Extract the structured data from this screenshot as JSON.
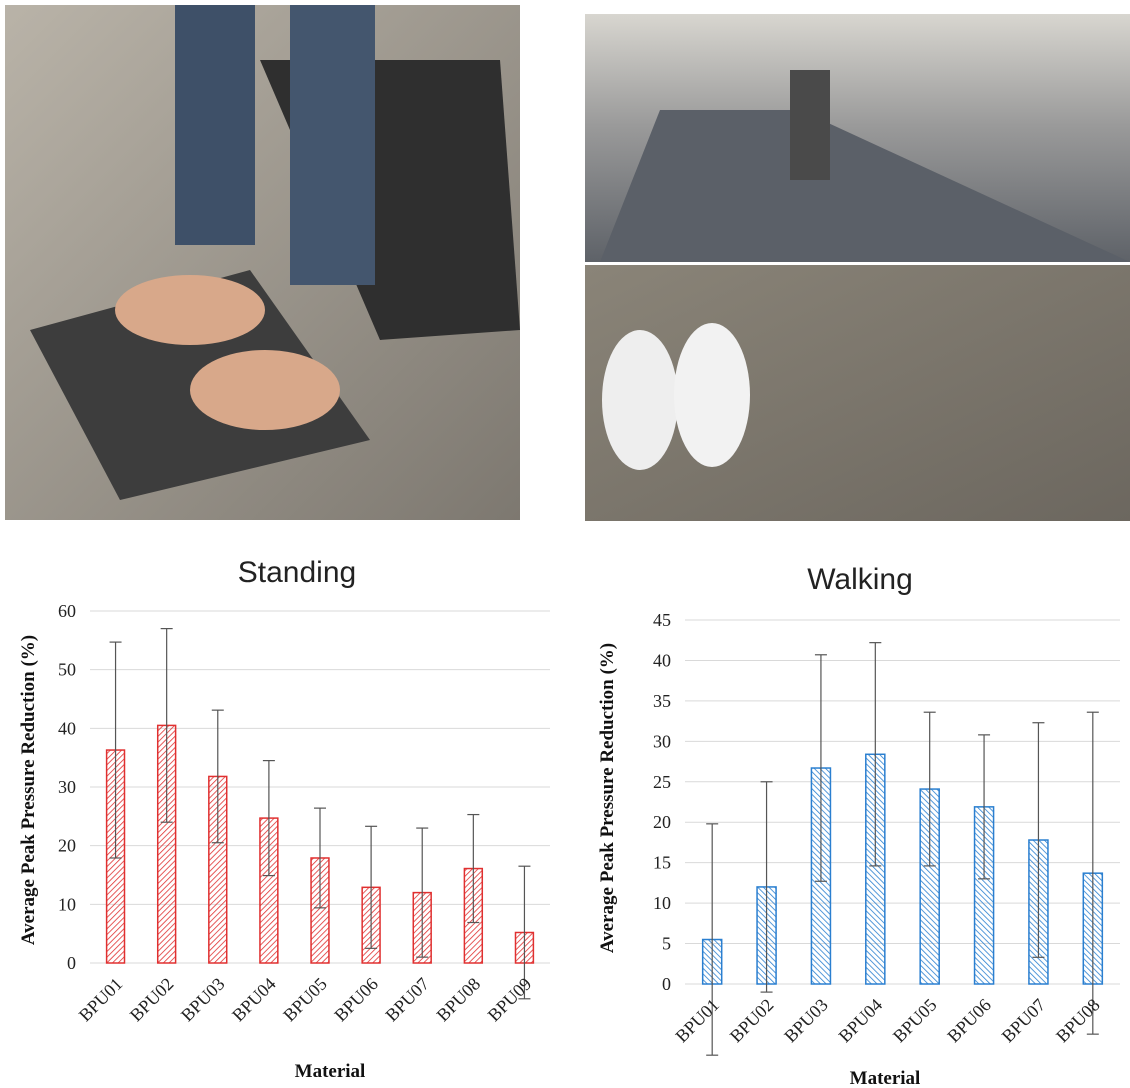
{
  "chart_data": [
    {
      "type": "bar",
      "title": "Standing",
      "x_label": "Material",
      "y_label": "Average Peak Pressure Reduction (%)",
      "categories": [
        "BPU01",
        "BPU02",
        "BPU03",
        "BPU04",
        "BPU05",
        "BPU06",
        "BPU07",
        "BPU08",
        "BPU09"
      ],
      "values": [
        36.3,
        40.5,
        31.8,
        24.7,
        17.9,
        12.9,
        12.0,
        16.1,
        5.2
      ],
      "errors": [
        18.4,
        16.5,
        11.3,
        9.8,
        8.5,
        10.4,
        11.0,
        9.2,
        11.3
      ],
      "color": "#e03030",
      "ylim": [
        0,
        60
      ],
      "yticks": [
        0,
        10,
        20,
        30,
        40,
        50,
        60
      ],
      "grid": true
    },
    {
      "type": "bar",
      "title": "Walking",
      "x_label": "Material",
      "y_label": "Average Peak Pressure Reduction (%)",
      "categories": [
        "BPU01",
        "BPU02",
        "BPU03",
        "BPU04",
        "BPU05",
        "BPU06",
        "BPU07",
        "BPU08"
      ],
      "values": [
        5.5,
        12.0,
        26.7,
        28.4,
        24.1,
        21.9,
        17.8,
        13.7
      ],
      "errors": [
        14.3,
        13.0,
        14.0,
        13.8,
        9.5,
        8.9,
        14.5,
        19.9
      ],
      "color": "#2a7fd0",
      "ylim": [
        0,
        45
      ],
      "yticks": [
        0,
        5,
        10,
        15,
        20,
        25,
        30,
        35,
        40,
        45
      ],
      "grid": true
    }
  ]
}
